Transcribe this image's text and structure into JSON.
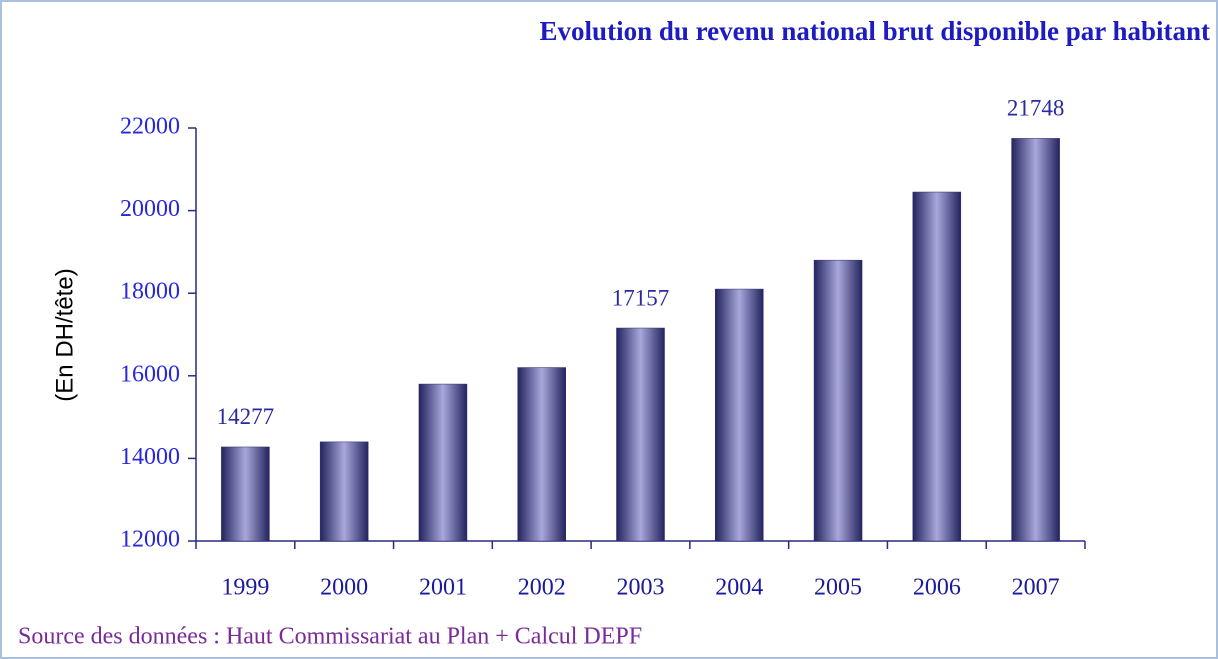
{
  "chart_data": {
    "type": "bar",
    "title": "Evolution du revenu national brut disponible par habitant",
    "y_label": "(En DH/tête)",
    "source": "Source des données : Haut Commissariat au Plan + Calcul DEPF",
    "categories": [
      "1999",
      "2000",
      "2001",
      "2002",
      "2003",
      "2004",
      "2005",
      "2006",
      "2007"
    ],
    "values": [
      14277,
      14400,
      15800,
      16200,
      17157,
      18100,
      18800,
      20450,
      21748
    ],
    "value_labels": [
      "14277",
      null,
      null,
      null,
      "17157",
      null,
      null,
      null,
      "21748"
    ],
    "color": "#2a2a6e",
    "ylim": [
      12000,
      22000
    ],
    "yticks": [
      12000,
      14000,
      16000,
      18000,
      20000,
      22000
    ],
    "grid": false
  }
}
